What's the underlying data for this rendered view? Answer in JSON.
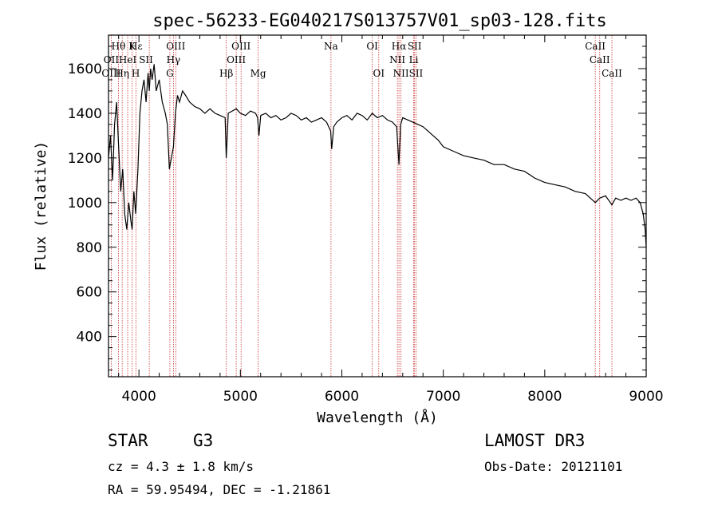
{
  "chart_data": {
    "type": "line",
    "title": "spec-56233-EG040217S013757V01_sp03-128.fits",
    "xlabel": "Wavelength (Å)",
    "ylabel": "Flux (relative)",
    "xlim": [
      3700,
      9000
    ],
    "ylim": [
      220,
      1750
    ],
    "x_ticks": [
      4000,
      5000,
      6000,
      7000,
      8000,
      9000
    ],
    "y_ticks": [
      400,
      600,
      800,
      1000,
      1200,
      1400,
      1600
    ],
    "series": [
      {
        "name": "flux",
        "x": [
          3700,
          3720,
          3740,
          3760,
          3780,
          3800,
          3820,
          3840,
          3860,
          3880,
          3900,
          3920,
          3933,
          3950,
          3968,
          3990,
          4010,
          4030,
          4050,
          4070,
          4090,
          4102,
          4115,
          4130,
          4150,
          4170,
          4200,
          4230,
          4260,
          4280,
          4300,
          4320,
          4340,
          4360,
          4380,
          4400,
          4430,
          4460,
          4500,
          4550,
          4600,
          4650,
          4700,
          4750,
          4800,
          4850,
          4861,
          4880,
          4920,
          4960,
          5000,
          5050,
          5100,
          5150,
          5170,
          5183,
          5200,
          5250,
          5300,
          5350,
          5400,
          5450,
          5500,
          5550,
          5600,
          5650,
          5700,
          5750,
          5800,
          5850,
          5890,
          5900,
          5920,
          5950,
          6000,
          6050,
          6100,
          6150,
          6200,
          6250,
          6300,
          6350,
          6400,
          6450,
          6500,
          6540,
          6563,
          6580,
          6600,
          6650,
          6700,
          6750,
          6800,
          6850,
          6900,
          6950,
          7000,
          7100,
          7200,
          7300,
          7400,
          7500,
          7600,
          7700,
          7800,
          7900,
          8000,
          8100,
          8200,
          8300,
          8400,
          8498,
          8542,
          8600,
          8662,
          8700,
          8750,
          8800,
          8850,
          8900,
          8940,
          8970,
          8990,
          9000
        ],
        "values": [
          1200,
          1300,
          1100,
          1350,
          1450,
          1250,
          1050,
          1150,
          950,
          880,
          1000,
          920,
          880,
          1050,
          950,
          1150,
          1400,
          1500,
          1550,
          1450,
          1580,
          1500,
          1600,
          1550,
          1620,
          1500,
          1550,
          1450,
          1400,
          1350,
          1150,
          1200,
          1250,
          1400,
          1480,
          1450,
          1500,
          1480,
          1450,
          1430,
          1420,
          1400,
          1420,
          1400,
          1390,
          1380,
          1200,
          1400,
          1410,
          1420,
          1400,
          1390,
          1410,
          1400,
          1380,
          1300,
          1390,
          1400,
          1380,
          1390,
          1370,
          1380,
          1400,
          1390,
          1370,
          1380,
          1360,
          1370,
          1380,
          1360,
          1320,
          1240,
          1340,
          1360,
          1380,
          1390,
          1370,
          1400,
          1390,
          1370,
          1400,
          1380,
          1390,
          1370,
          1360,
          1340,
          1170,
          1350,
          1380,
          1370,
          1360,
          1350,
          1340,
          1320,
          1300,
          1280,
          1250,
          1230,
          1210,
          1200,
          1190,
          1170,
          1170,
          1150,
          1140,
          1110,
          1090,
          1080,
          1070,
          1050,
          1040,
          1000,
          1020,
          1030,
          990,
          1020,
          1010,
          1020,
          1010,
          1020,
          1000,
          950,
          880,
          800
        ]
      }
    ],
    "annotations": [
      {
        "row": 1,
        "text": "Hθ",
        "x": 3798
      },
      {
        "row": 1,
        "text": "K",
        "x": 3934
      },
      {
        "row": 1,
        "text": "Hε",
        "x": 3970
      },
      {
        "row": 1,
        "text": "OIII",
        "x": 4363
      },
      {
        "row": 1,
        "text": "OIII",
        "x": 5007
      },
      {
        "row": 1,
        "text": "OI",
        "x": 6300
      },
      {
        "row": 1,
        "text": "Hα",
        "x": 6563
      },
      {
        "row": 1,
        "text": "SII",
        "x": 6717
      },
      {
        "row": 1,
        "text": "Na",
        "x": 5893
      },
      {
        "row": 1,
        "text": "CaII",
        "x": 8498
      },
      {
        "row": 2,
        "text": "OII",
        "x": 3727
      },
      {
        "row": 2,
        "text": "HeI",
        "x": 3889
      },
      {
        "row": 2,
        "text": "SII",
        "x": 4070
      },
      {
        "row": 2,
        "text": "Hγ",
        "x": 4340
      },
      {
        "row": 2,
        "text": "OIII",
        "x": 4959
      },
      {
        "row": 2,
        "text": "NII",
        "x": 6548
      },
      {
        "row": 2,
        "text": "Li",
        "x": 6708
      },
      {
        "row": 2,
        "text": "CaII",
        "x": 8542
      },
      {
        "row": 3,
        "text": "OIII",
        "x": 3727
      },
      {
        "row": 3,
        "text": "Hη",
        "x": 3835
      },
      {
        "row": 3,
        "text": "H",
        "x": 3968
      },
      {
        "row": 3,
        "text": "G",
        "x": 4305
      },
      {
        "row": 3,
        "text": "Hβ",
        "x": 4861
      },
      {
        "row": 3,
        "text": "Mg",
        "x": 5175
      },
      {
        "row": 3,
        "text": "OI",
        "x": 6364
      },
      {
        "row": 3,
        "text": "NII",
        "x": 6583
      },
      {
        "row": 3,
        "text": "SII",
        "x": 6731
      },
      {
        "row": 3,
        "text": "CaII",
        "x": 8662
      }
    ],
    "line_markers": [
      3727,
      3798,
      3835,
      3889,
      3934,
      3970,
      4102,
      4305,
      4340,
      4363,
      4861,
      4959,
      5007,
      5175,
      5893,
      6300,
      6364,
      6548,
      6563,
      6583,
      6708,
      6717,
      6731,
      8498,
      8542,
      8662
    ],
    "line_marker_color": "#cc3333",
    "grid": false,
    "legend": "none"
  },
  "info": {
    "object_class": "STAR",
    "subclass": "G3",
    "redshift": "cz =  4.3 ± 1.8 km/s",
    "coords": "RA =  59.95494, DEC =  -1.21861",
    "survey": "LAMOST DR3",
    "obs_date": "Obs-Date: 20121101"
  }
}
